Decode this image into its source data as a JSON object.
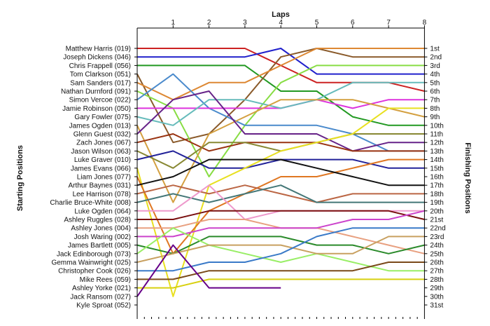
{
  "chart_data": {
    "type": "line",
    "title": "Laps",
    "ylabel_left": "Starting Positions",
    "ylabel_right": "Finishing Positions",
    "x_ticks": [
      "1",
      "2",
      "3",
      "4",
      "5",
      "6",
      "7",
      "8"
    ],
    "x_range": [
      0,
      8
    ],
    "y_range": [
      1,
      31
    ],
    "y_inverted": true,
    "grid": false,
    "finish_labels": [
      "1st",
      "2nd",
      "3rd",
      "4th",
      "5th",
      "6th",
      "7th",
      "8th",
      "9th",
      "10th",
      "11th",
      "12th",
      "13th",
      "14th",
      "15th",
      "16th",
      "17th",
      "18th",
      "19th",
      "20th",
      "21st",
      "22nd",
      "23rd",
      "24th",
      "25th",
      "26th",
      "27th",
      "28th",
      "29th",
      "30th",
      "31st"
    ],
    "series": [
      {
        "name": "Matthew Harris (019)",
        "color": "#cc2222",
        "values": [
          1,
          1,
          1,
          3,
          5,
          5,
          5,
          6
        ]
      },
      {
        "name": "Joseph Dickens (046)",
        "color": "#2020cc",
        "values": [
          2,
          2,
          2,
          1,
          4,
          4,
          4,
          4
        ]
      },
      {
        "name": "Chris Frappell (056)",
        "color": "#229922",
        "values": [
          3,
          3,
          3,
          6,
          6,
          9,
          10,
          10
        ]
      },
      {
        "name": "Tom Clarkson (051)",
        "color": "#8a5a2a",
        "values": [
          12,
          11,
          7,
          2,
          1,
          2,
          2,
          2
        ]
      },
      {
        "name": "Sam Sanders (017)",
        "color": "#dd8833",
        "values": [
          7,
          5,
          5,
          3,
          1,
          1,
          1,
          1
        ]
      },
      {
        "name": "Nathan Durnford (091)",
        "color": "#88dd44",
        "values": [
          8,
          16,
          10,
          5,
          3,
          3,
          3,
          3
        ]
      },
      {
        "name": "Simon Vercoe (022)",
        "color": "#4a8acc",
        "values": [
          4,
          8,
          10,
          10,
          10,
          11,
          13,
          13
        ]
      },
      {
        "name": "Jamie Robinson (050)",
        "color": "#dd33dd",
        "values": [
          8,
          8,
          8,
          8,
          7,
          8,
          7,
          7
        ]
      },
      {
        "name": "Gary Fowler (075)",
        "color": "#66bbbb",
        "values": [
          10,
          7,
          7,
          8,
          7,
          5,
          5,
          5
        ]
      },
      {
        "name": "James Ogden (013)",
        "color": "#d4a040",
        "values": [
          19,
          11,
          9,
          7,
          7,
          7,
          8,
          9
        ]
      },
      {
        "name": "Glenn Guest (032)",
        "color": "#662288",
        "values": [
          7,
          6,
          11,
          11,
          11,
          13,
          12,
          12
        ]
      },
      {
        "name": "Zach Jones (067)",
        "color": "#993311",
        "values": [
          11,
          13,
          12,
          12,
          12,
          13,
          13,
          13
        ]
      },
      {
        "name": "Jason Wilson (063)",
        "color": "#888833",
        "values": [
          15,
          12,
          12,
          13,
          12,
          11,
          11,
          11
        ]
      },
      {
        "name": "Luke Graver (010)",
        "color": "#222299",
        "values": [
          13,
          15,
          15,
          14,
          14,
          14,
          15,
          15
        ]
      },
      {
        "name": "James Evans (066)",
        "color": "#e8e020",
        "values": [
          30,
          17,
          15,
          13,
          12,
          11,
          8,
          8
        ]
      },
      {
        "name": "Liam Jones (077)",
        "color": "#e07722",
        "values": [
          25,
          20,
          18,
          16,
          16,
          15,
          14,
          14
        ]
      },
      {
        "name": "Arthur Baynes (031)",
        "color": "#111111",
        "values": [
          16,
          14,
          14,
          14,
          15,
          16,
          17,
          17
        ]
      },
      {
        "name": "Lee Harrison (078)",
        "color": "#bb6644",
        "values": [
          17,
          18,
          17,
          18,
          19,
          18,
          18,
          18
        ]
      },
      {
        "name": "Charlie Bruce-White (008)",
        "color": "#447777",
        "values": [
          18,
          19,
          18,
          17,
          19,
          19,
          19,
          19
        ]
      },
      {
        "name": "Luke Ogden (064)",
        "color": "#ee99cc",
        "values": [
          20,
          17,
          21,
          20,
          20,
          20,
          20,
          20
        ]
      },
      {
        "name": "Ashley Ruggles (028)",
        "color": "#7a1010",
        "values": [
          21,
          20,
          20,
          20,
          20,
          20,
          20,
          21
        ]
      },
      {
        "name": "Ashley Jones (004)",
        "color": "#e8a080",
        "values": [
          22,
          21,
          21,
          22,
          22,
          23,
          24,
          25
        ]
      },
      {
        "name": "Josh Waring (002)",
        "color": "#cc44cc",
        "values": [
          23,
          22,
          22,
          22,
          22,
          21,
          21,
          20
        ]
      },
      {
        "name": "James Bartlett (005)",
        "color": "#2a8a2a",
        "values": [
          25,
          23,
          23,
          23,
          24,
          24,
          25,
          24
        ]
      },
      {
        "name": "Jack Edinborough (073)",
        "color": "#99ee66",
        "values": [
          22,
          24,
          25,
          26,
          25,
          26,
          27,
          27
        ]
      },
      {
        "name": "Gemma Wainwright (025)",
        "color": "#c8a060",
        "values": [
          25,
          24,
          24,
          24,
          25,
          25,
          23,
          23
        ]
      },
      {
        "name": "Christopher Cook (026)",
        "color": "#3a7ac8",
        "values": [
          27,
          26,
          26,
          25,
          23,
          22,
          22,
          22
        ]
      },
      {
        "name": "Mike Rees (059)",
        "color": "#7a4a1a",
        "values": [
          28,
          27,
          27,
          27,
          27,
          27,
          26,
          26
        ]
      },
      {
        "name": "Ashley Yorke (021)",
        "color": "#d8d010",
        "values": [
          29,
          28,
          28,
          28,
          28,
          28,
          28,
          28
        ]
      },
      {
        "name": "Jack Ransom (027)",
        "color": "#660088",
        "values": [
          24,
          29,
          29,
          29
        ]
      },
      {
        "name": "Kyle Sproat (052)",
        "color": "#cccccc",
        "values": []
      }
    ]
  }
}
